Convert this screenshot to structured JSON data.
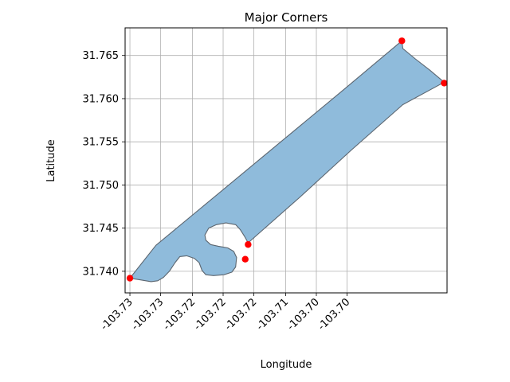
{
  "chart_data": {
    "type": "area",
    "title": "Major Corners",
    "xlabel": "Longitude",
    "ylabel": "Latitude",
    "xlim": [
      -103.7302,
      -103.6967
    ],
    "ylim": [
      31.7375,
      31.7682
    ],
    "grid": true,
    "x_ticks": [
      -103.7297,
      -103.7265,
      -103.7232,
      -103.72,
      -103.7168,
      -103.7135,
      -103.7103,
      -103.7071
    ],
    "x_tick_labels": [
      "-103.73",
      "-103.73",
      "-103.72",
      "-103.72",
      "-103.72",
      "-103.71",
      "-103.70",
      "-103.70"
    ],
    "y_ticks": [
      31.74,
      31.745,
      31.75,
      31.755,
      31.76,
      31.765
    ],
    "y_tick_labels": [
      "31.740",
      "31.745",
      "31.750",
      "31.755",
      "31.760",
      "31.765"
    ],
    "polygon": {
      "fill_color": "#8fbbdb",
      "edge_color": "#5c6670",
      "points": [
        [
          -103.7297,
          31.7392
        ],
        [
          -103.7286,
          31.739
        ],
        [
          -103.7275,
          31.7388
        ],
        [
          -103.7268,
          31.7389
        ],
        [
          -103.7262,
          31.7393
        ],
        [
          -103.7256,
          31.74
        ],
        [
          -103.725,
          31.741
        ],
        [
          -103.7245,
          31.7417
        ],
        [
          -103.7238,
          31.7418
        ],
        [
          -103.723,
          31.7415
        ],
        [
          -103.7225,
          31.741
        ],
        [
          -103.7222,
          31.7401
        ],
        [
          -103.7218,
          31.7396
        ],
        [
          -103.721,
          31.7395
        ],
        [
          -103.7199,
          31.7396
        ],
        [
          -103.7191,
          31.7399
        ],
        [
          -103.7187,
          31.7405
        ],
        [
          -103.7186,
          31.7416
        ],
        [
          -103.7189,
          31.7423
        ],
        [
          -103.7195,
          31.7427
        ],
        [
          -103.7205,
          31.7429
        ],
        [
          -103.7213,
          31.7431
        ],
        [
          -103.7218,
          31.7436
        ],
        [
          -103.7219,
          31.7442
        ],
        [
          -103.7215,
          31.745
        ],
        [
          -103.7207,
          31.7454
        ],
        [
          -103.7197,
          31.7456
        ],
        [
          -103.7187,
          31.7454
        ],
        [
          -103.7182,
          31.7448
        ],
        [
          -103.7178,
          31.7441
        ],
        [
          -103.7174,
          31.7433
        ],
        [
          -103.712,
          31.7486
        ],
        [
          -103.7067,
          31.754
        ],
        [
          -103.7013,
          31.7593
        ],
        [
          -103.697,
          31.7619
        ],
        [
          -103.6985,
          31.7633
        ],
        [
          -103.7,
          31.7646
        ],
        [
          -103.7013,
          31.7658
        ],
        [
          -103.7014,
          31.7667
        ],
        [
          -103.7075,
          31.761
        ],
        [
          -103.714,
          31.755
        ],
        [
          -103.7205,
          31.749
        ],
        [
          -103.727,
          31.743
        ],
        [
          -103.7297,
          31.7392
        ]
      ]
    },
    "corners": {
      "color": "#ff0000",
      "points": [
        [
          -103.7297,
          31.7392
        ],
        [
          -103.7177,
          31.7414
        ],
        [
          -103.7174,
          31.7431
        ],
        [
          -103.7014,
          31.7667
        ],
        [
          -103.697,
          31.7618
        ]
      ]
    }
  }
}
